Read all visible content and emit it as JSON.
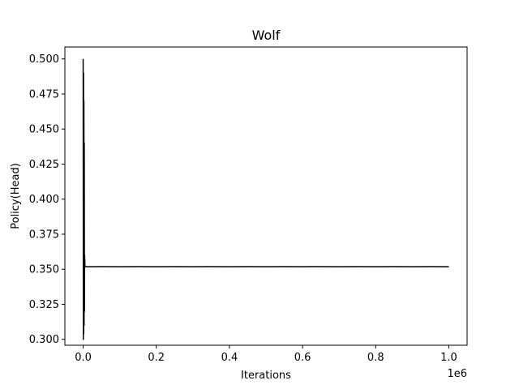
{
  "chart_data": {
    "type": "line",
    "title": "Wolf",
    "xlabel": "Iterations",
    "ylabel": "Policy(Head)",
    "x_offset_label": "1e6",
    "xlim": [
      -50000,
      1050000
    ],
    "ylim": [
      0.2958,
      0.5085
    ],
    "x_ticks": [
      0,
      200000,
      400000,
      600000,
      800000,
      1000000
    ],
    "x_tick_labels": [
      "0.0",
      "0.2",
      "0.4",
      "0.6",
      "0.8",
      "1.0"
    ],
    "y_ticks": [
      0.3,
      0.325,
      0.35,
      0.375,
      0.4,
      0.425,
      0.45,
      0.475,
      0.5
    ],
    "y_tick_labels": [
      "0.300",
      "0.325",
      "0.350",
      "0.375",
      "0.400",
      "0.425",
      "0.450",
      "0.475",
      "0.500"
    ],
    "grid": false,
    "line_color": "#000000",
    "series": [
      {
        "x": [
          0,
          500,
          1000,
          1500,
          2000,
          2500,
          3000,
          3500,
          4000,
          5000,
          10000,
          50000,
          100000,
          150000,
          200000,
          250000,
          300000,
          350000,
          400000,
          450000,
          500000,
          550000,
          600000,
          650000,
          700000,
          750000,
          800000,
          850000,
          900000,
          950000,
          1000000
        ],
        "y": [
          0.5,
          0.3,
          0.49,
          0.304,
          0.47,
          0.31,
          0.44,
          0.32,
          0.36,
          0.352,
          0.3518,
          0.3519,
          0.3518,
          0.3519,
          0.3518,
          0.3519,
          0.3518,
          0.3519,
          0.3518,
          0.3519,
          0.3518,
          0.3519,
          0.3518,
          0.3519,
          0.3518,
          0.3519,
          0.3518,
          0.3519,
          0.3518,
          0.3519,
          0.3518
        ]
      }
    ]
  }
}
